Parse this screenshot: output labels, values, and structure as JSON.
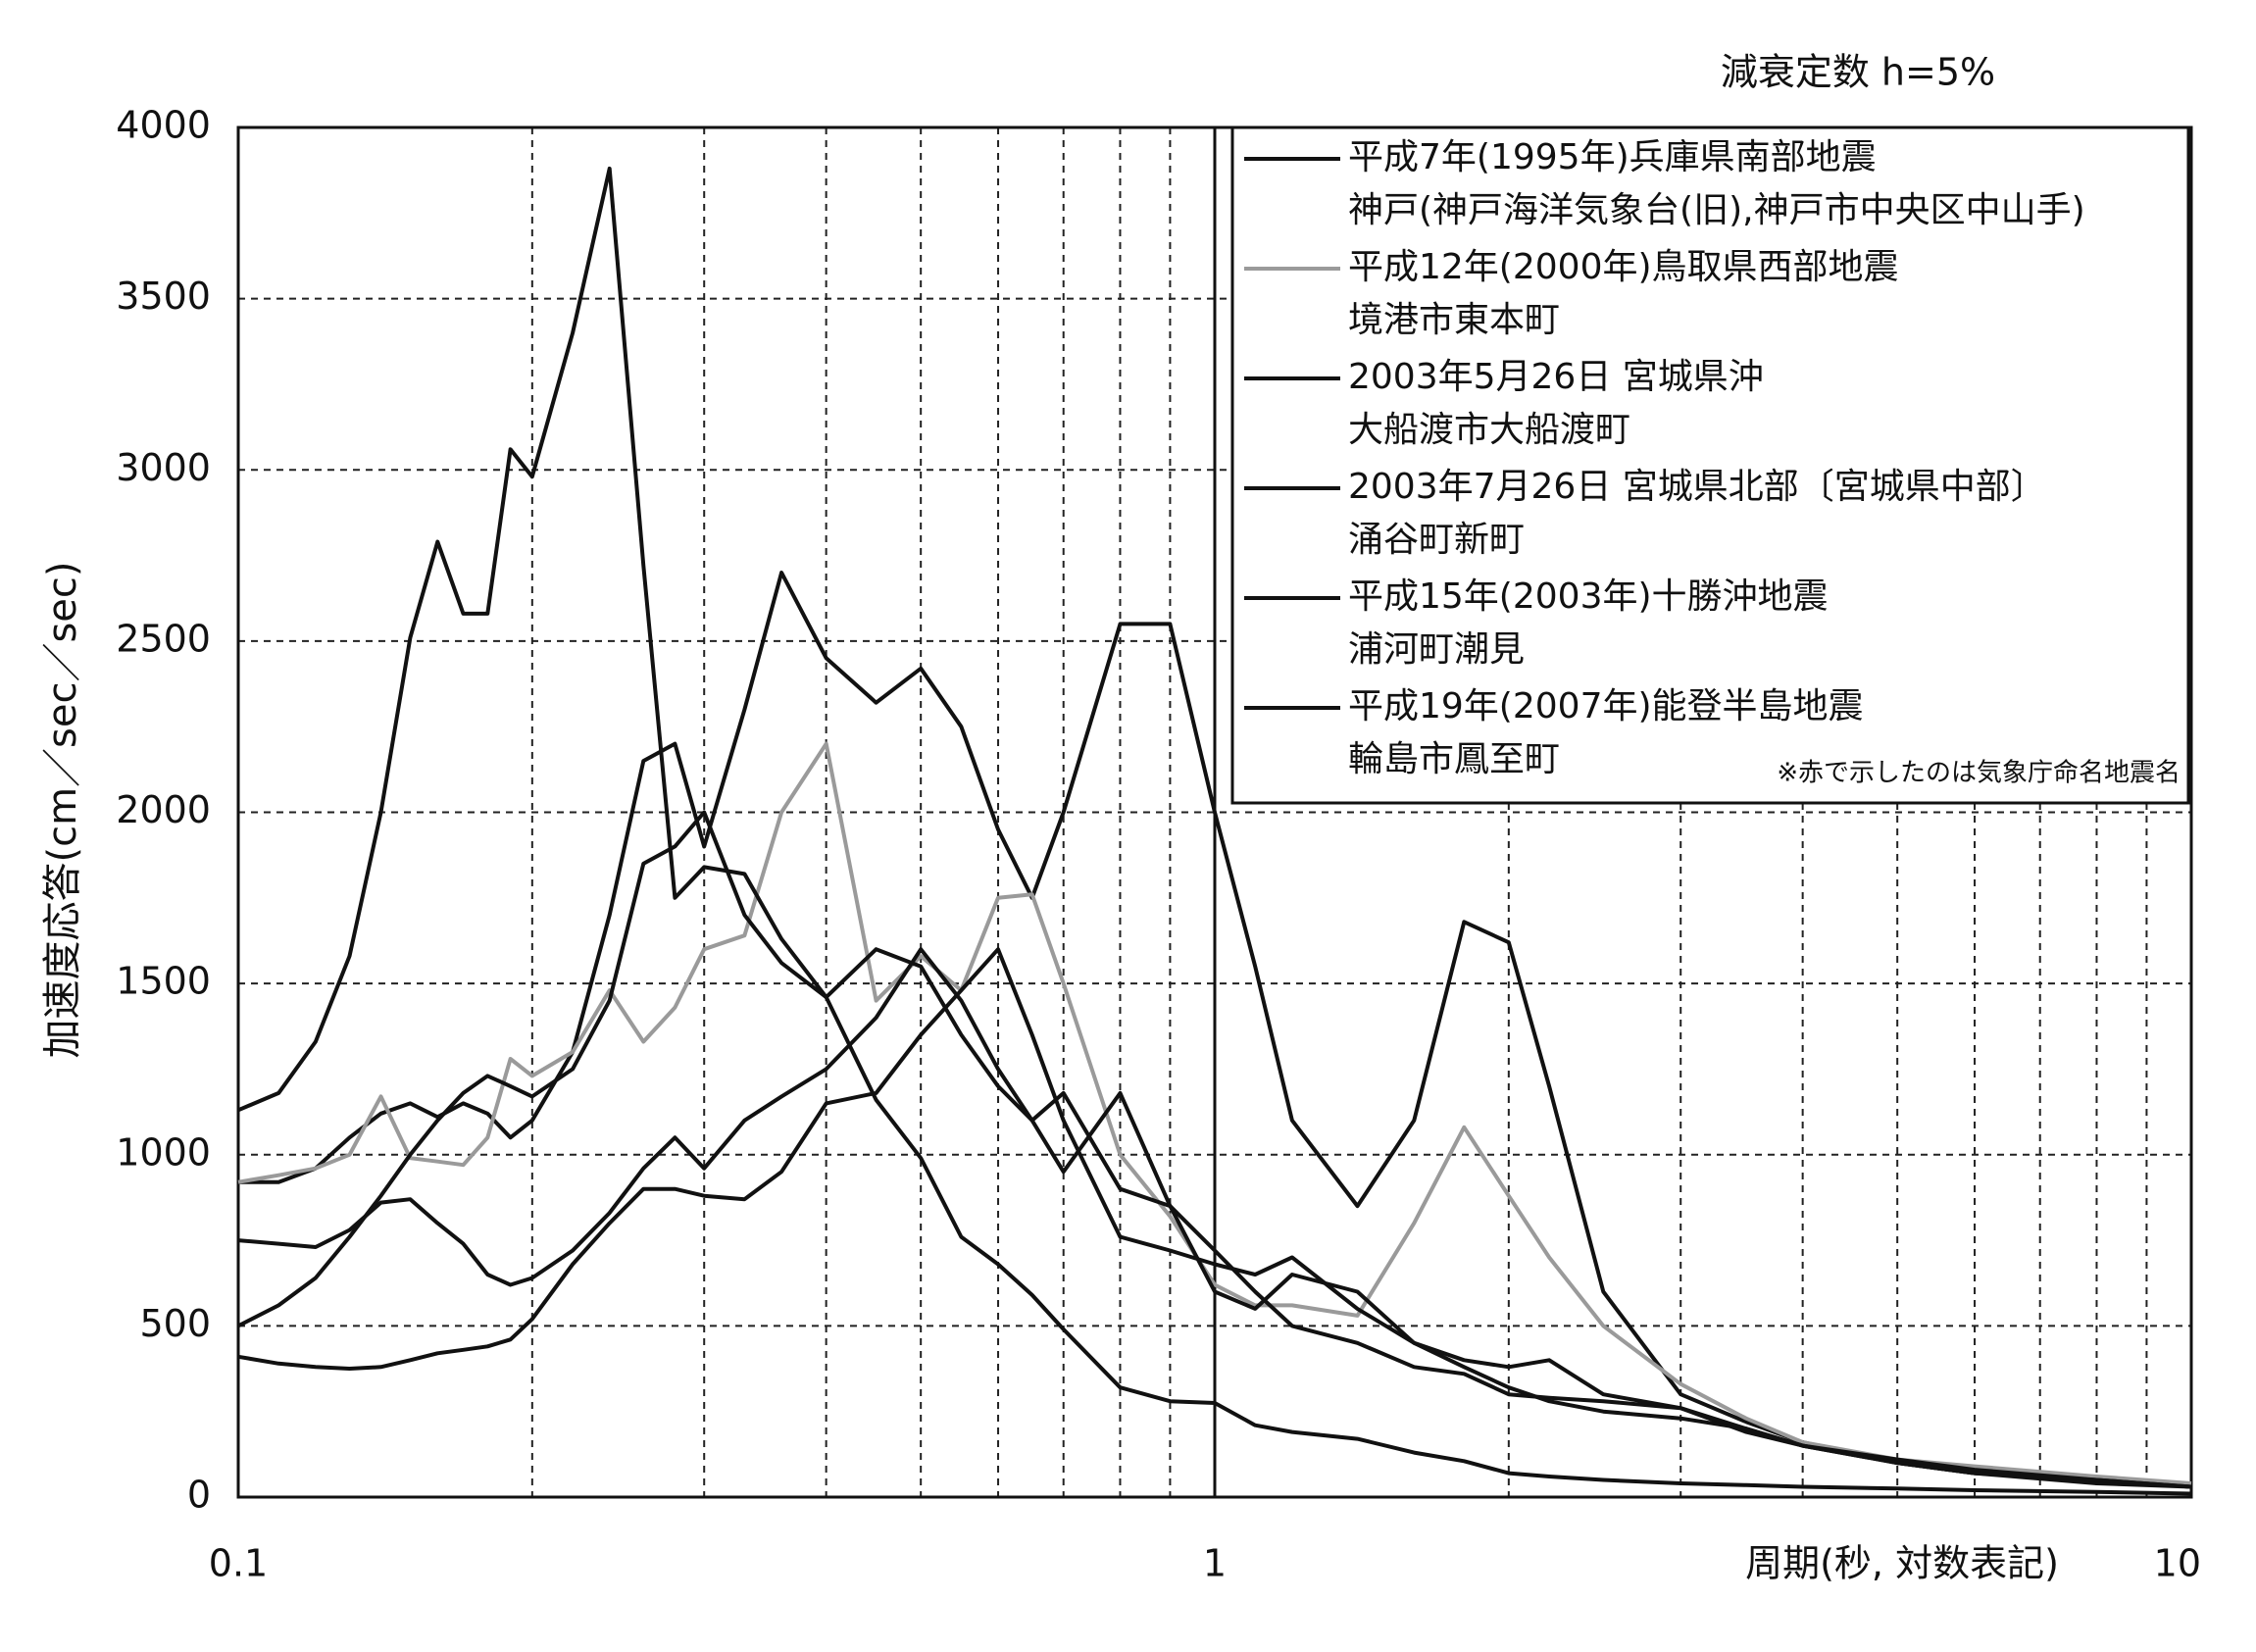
{
  "chart_data": {
    "type": "line",
    "title": "減衰定数 h=5%",
    "x_label": "周期(秒, 対数表記)",
    "y_label": "加速度応答(cm／sec／sec)",
    "note": "※赤で示したのは気象庁命名地震名",
    "xscale": "log",
    "xlim": [
      0.1,
      10
    ],
    "xticks": [
      0.1,
      1,
      10
    ],
    "xminorticks": [
      0.2,
      0.3,
      0.4,
      0.5,
      0.6,
      0.7,
      0.8,
      0.9,
      2,
      3,
      4,
      5,
      6,
      7,
      8,
      9
    ],
    "ylim": [
      0,
      4000
    ],
    "yticks": [
      0,
      500,
      1000,
      1500,
      2000,
      2500,
      3000,
      3500,
      4000
    ],
    "grid": true,
    "legend": "upper right",
    "x": [
      0.1,
      0.11,
      0.12,
      0.13,
      0.14,
      0.15,
      0.16,
      0.17,
      0.18,
      0.19,
      0.2,
      0.22,
      0.24,
      0.26,
      0.28,
      0.3,
      0.33,
      0.36,
      0.4,
      0.45,
      0.5,
      0.55,
      0.6,
      0.65,
      0.7,
      0.8,
      0.9,
      1,
      1.1,
      1.2,
      1.4,
      1.6,
      1.8,
      2,
      2.2,
      2.5,
      3,
      3.5,
      4,
      5,
      6,
      8,
      10
    ],
    "series": [
      {
        "name": "平成7年(1995年)兵庫県南部地震",
        "site": "神戸(神戸海洋気象台(旧),神戸市中央区中山手)",
        "color": "#111111",
        "values": [
          920,
          920,
          960,
          1050,
          1120,
          1150,
          1110,
          1150,
          1120,
          1050,
          1100,
          1300,
          1700,
          2150,
          2200,
          1900,
          2300,
          2700,
          2450,
          2320,
          2420,
          2250,
          1950,
          1750,
          2000,
          2550,
          2550,
          2000,
          1550,
          1100,
          850,
          1100,
          1680,
          1620,
          1200,
          600,
          300,
          220,
          160,
          100,
          70,
          50,
          30
        ]
      },
      {
        "name": "平成12年(2000年)鳥取県西部地震",
        "site": "境港市東本町",
        "color": "#9a9a9a",
        "values": [
          920,
          940,
          960,
          1000,
          1170,
          990,
          980,
          970,
          1050,
          1280,
          1230,
          1300,
          1480,
          1330,
          1430,
          1600,
          1640,
          2000,
          2200,
          1450,
          1580,
          1480,
          1750,
          1760,
          1500,
          1000,
          820,
          620,
          560,
          560,
          530,
          800,
          1080,
          880,
          700,
          500,
          330,
          230,
          160,
          110,
          90,
          60,
          40
        ]
      },
      {
        "name": "2003年5月26日 宮城県沖",
        "site": "大船渡市大船渡町",
        "color": "#111111",
        "values": [
          1130,
          1180,
          1330,
          1580,
          2000,
          2510,
          2790,
          2580,
          2580,
          3060,
          2980,
          3400,
          3880,
          2720,
          1750,
          1840,
          1820,
          1630,
          1460,
          1160,
          990,
          760,
          680,
          590,
          490,
          320,
          280,
          275,
          210,
          190,
          170,
          130,
          105,
          70,
          60,
          50,
          40,
          35,
          30,
          25,
          20,
          15,
          10
        ]
      },
      {
        "name": "2003年7月26日 宮城県北部〔宮城県中部〕",
        "site": "涌谷町新町",
        "color": "#111111",
        "values": [
          750,
          740,
          730,
          780,
          860,
          870,
          800,
          740,
          650,
          620,
          640,
          720,
          830,
          960,
          1050,
          960,
          1100,
          1170,
          1250,
          1400,
          1600,
          1450,
          1250,
          1100,
          1180,
          900,
          850,
          720,
          600,
          500,
          450,
          380,
          360,
          300,
          290,
          280,
          260,
          190,
          150,
          100,
          70,
          40,
          30
        ]
      },
      {
        "name": "平成15年(2003年)十勝沖地震",
        "site": "浦河町潮見",
        "color": "#111111",
        "values": [
          500,
          560,
          640,
          760,
          880,
          1000,
          1100,
          1180,
          1230,
          1200,
          1170,
          1250,
          1450,
          1850,
          1900,
          2000,
          1700,
          1560,
          1460,
          1600,
          1550,
          1350,
          1200,
          1100,
          950,
          1180,
          850,
          600,
          550,
          650,
          600,
          450,
          380,
          320,
          280,
          250,
          230,
          200,
          150,
          110,
          80,
          50,
          30
        ]
      },
      {
        "name": "平成19年(2007年)能登半島地震",
        "site": "輪島市鳳至町",
        "color": "#111111",
        "values": [
          410,
          390,
          380,
          375,
          380,
          400,
          420,
          430,
          440,
          460,
          520,
          680,
          800,
          900,
          900,
          880,
          870,
          950,
          1150,
          1180,
          1350,
          1480,
          1600,
          1350,
          1100,
          760,
          720,
          680,
          650,
          700,
          550,
          450,
          400,
          380,
          400,
          300,
          260,
          200,
          150,
          100,
          70,
          50,
          30
        ]
      }
    ]
  }
}
